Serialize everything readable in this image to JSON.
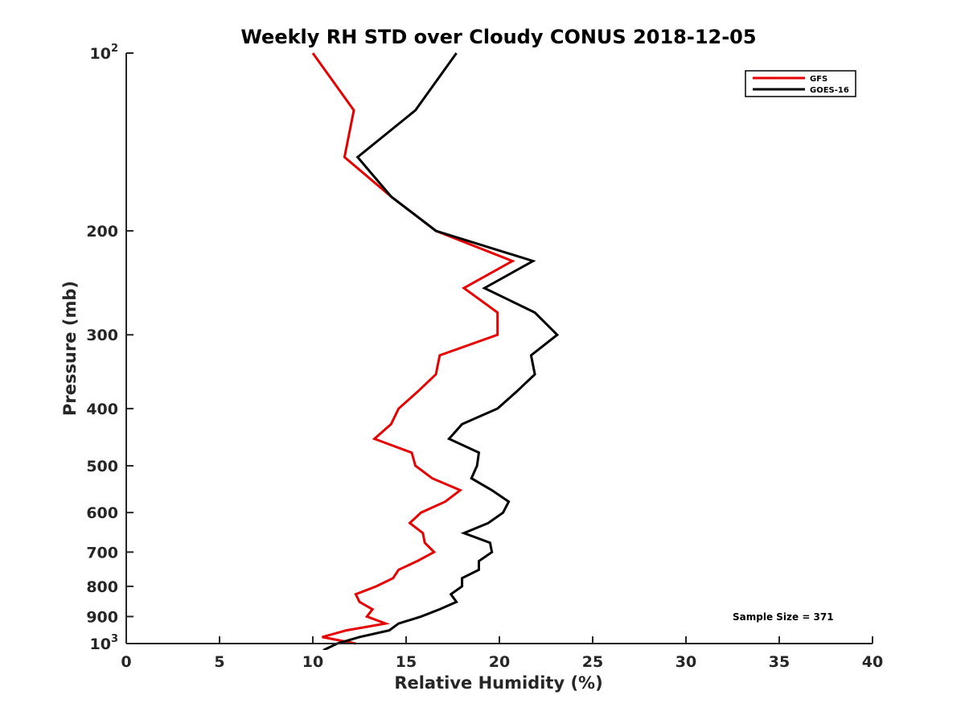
{
  "chart_data": {
    "type": "line",
    "title": "Weekly RH STD over Cloudy CONUS 2018-12-05",
    "xlabel": "Relative Humidity (%)",
    "ylabel": "Pressure (mb)",
    "xlim": [
      0,
      40
    ],
    "ylim": [
      100,
      1000
    ],
    "y_scale": "log",
    "y_reversed": true,
    "xticks": [
      0,
      5,
      10,
      15,
      20,
      25,
      30,
      35,
      40
    ],
    "yticks": [
      {
        "value": 100,
        "label": "10",
        "sup": "2"
      },
      {
        "value": 200,
        "label": "200",
        "sup": ""
      },
      {
        "value": 300,
        "label": "300",
        "sup": ""
      },
      {
        "value": 400,
        "label": "400",
        "sup": ""
      },
      {
        "value": 500,
        "label": "500",
        "sup": ""
      },
      {
        "value": 600,
        "label": "600",
        "sup": ""
      },
      {
        "value": 700,
        "label": "700",
        "sup": ""
      },
      {
        "value": 800,
        "label": "800",
        "sup": ""
      },
      {
        "value": 900,
        "label": "900",
        "sup": ""
      },
      {
        "value": 1000,
        "label": "10",
        "sup": "3"
      }
    ],
    "grid": false,
    "legend_position": "top-right",
    "annotation": "Sample Size = 371",
    "series": [
      {
        "name": "GFS",
        "color": "#e60000",
        "points": [
          {
            "x": 10.0,
            "y": 100
          },
          {
            "x": 12.2,
            "y": 125
          },
          {
            "x": 11.7,
            "y": 150
          },
          {
            "x": 14.2,
            "y": 175
          },
          {
            "x": 16.6,
            "y": 200
          },
          {
            "x": 20.7,
            "y": 225
          },
          {
            "x": 18.1,
            "y": 250
          },
          {
            "x": 19.9,
            "y": 275
          },
          {
            "x": 19.9,
            "y": 300
          },
          {
            "x": 16.8,
            "y": 325
          },
          {
            "x": 16.6,
            "y": 350
          },
          {
            "x": 15.6,
            "y": 375
          },
          {
            "x": 14.6,
            "y": 400
          },
          {
            "x": 14.2,
            "y": 425
          },
          {
            "x": 13.3,
            "y": 450
          },
          {
            "x": 15.3,
            "y": 475
          },
          {
            "x": 15.5,
            "y": 500
          },
          {
            "x": 16.4,
            "y": 525
          },
          {
            "x": 17.9,
            "y": 550
          },
          {
            "x": 17.1,
            "y": 575
          },
          {
            "x": 15.8,
            "y": 600
          },
          {
            "x": 15.2,
            "y": 625
          },
          {
            "x": 15.9,
            "y": 650
          },
          {
            "x": 16.0,
            "y": 675
          },
          {
            "x": 16.5,
            "y": 700
          },
          {
            "x": 15.6,
            "y": 725
          },
          {
            "x": 14.6,
            "y": 750
          },
          {
            "x": 14.3,
            "y": 775
          },
          {
            "x": 13.4,
            "y": 800
          },
          {
            "x": 12.3,
            "y": 825
          },
          {
            "x": 12.5,
            "y": 850
          },
          {
            "x": 13.2,
            "y": 875
          },
          {
            "x": 12.9,
            "y": 900
          },
          {
            "x": 13.9,
            "y": 925
          },
          {
            "x": 11.8,
            "y": 950
          },
          {
            "x": 10.5,
            "y": 975
          },
          {
            "x": 12.3,
            "y": 1000
          }
        ]
      },
      {
        "name": "GOES-16",
        "color": "#000000",
        "points": [
          {
            "x": 17.7,
            "y": 100
          },
          {
            "x": 15.5,
            "y": 125
          },
          {
            "x": 12.4,
            "y": 150
          },
          {
            "x": 14.2,
            "y": 175
          },
          {
            "x": 16.6,
            "y": 200
          },
          {
            "x": 21.8,
            "y": 225
          },
          {
            "x": 19.2,
            "y": 250
          },
          {
            "x": 21.9,
            "y": 275
          },
          {
            "x": 23.1,
            "y": 300
          },
          {
            "x": 21.7,
            "y": 325
          },
          {
            "x": 21.9,
            "y": 350
          },
          {
            "x": 20.9,
            "y": 375
          },
          {
            "x": 19.9,
            "y": 400
          },
          {
            "x": 18.0,
            "y": 425
          },
          {
            "x": 17.3,
            "y": 450
          },
          {
            "x": 18.9,
            "y": 475
          },
          {
            "x": 18.8,
            "y": 500
          },
          {
            "x": 18.5,
            "y": 525
          },
          {
            "x": 19.6,
            "y": 550
          },
          {
            "x": 20.5,
            "y": 575
          },
          {
            "x": 20.2,
            "y": 600
          },
          {
            "x": 19.4,
            "y": 625
          },
          {
            "x": 18.1,
            "y": 650
          },
          {
            "x": 19.5,
            "y": 675
          },
          {
            "x": 19.6,
            "y": 700
          },
          {
            "x": 18.9,
            "y": 725
          },
          {
            "x": 18.9,
            "y": 750
          },
          {
            "x": 18.0,
            "y": 775
          },
          {
            "x": 18.0,
            "y": 800
          },
          {
            "x": 17.4,
            "y": 825
          },
          {
            "x": 17.7,
            "y": 850
          },
          {
            "x": 16.8,
            "y": 875
          },
          {
            "x": 15.8,
            "y": 900
          },
          {
            "x": 14.6,
            "y": 925
          },
          {
            "x": 14.1,
            "y": 950
          },
          {
            "x": 12.5,
            "y": 975
          },
          {
            "x": 11.3,
            "y": 1000
          },
          {
            "x": 10.6,
            "y": 1025
          },
          {
            "x": 10.5,
            "y": 1050
          },
          {
            "x": 9.7,
            "y": 1075
          }
        ]
      }
    ]
  }
}
